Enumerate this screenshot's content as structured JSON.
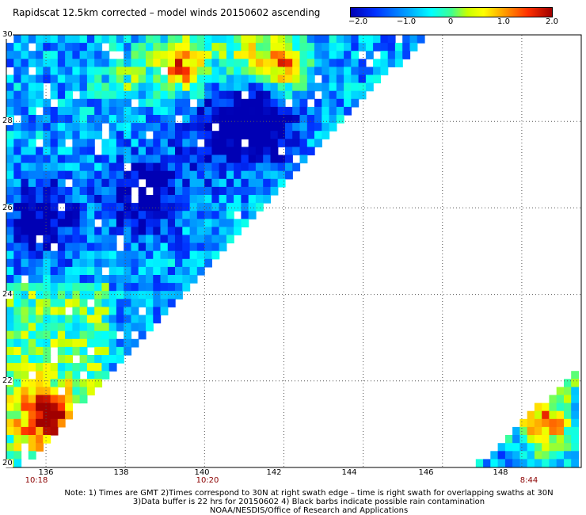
{
  "title": "Rapidscat 12.5km corrected – model winds 20150602 ascending",
  "colorbar": {
    "labels": [
      "−2.0",
      "−1.0",
      "0",
      "1.0",
      "2.0"
    ],
    "label_values": [
      -2.0,
      -1.0,
      0,
      1.0,
      2.0
    ],
    "range": [
      -2.0,
      2.0
    ]
  },
  "map": {
    "lon_range": [
      135,
      149.5
    ],
    "lat_range": [
      20,
      30
    ],
    "lon_ticks": [
      "136",
      "138",
      "140",
      "142",
      "144",
      "146",
      "148"
    ],
    "lon_tick_values": [
      136,
      138,
      140,
      142,
      144,
      146,
      148
    ],
    "lat_ticks": [
      "30",
      "28",
      "26",
      "24",
      "22",
      "20"
    ],
    "lat_tick_values": [
      30,
      28,
      26,
      24,
      22,
      20
    ],
    "time_labels": [
      {
        "text": "10:18",
        "lon": 135.8
      },
      {
        "text": "10:20",
        "lon": 140.2
      },
      {
        "text": "8:44",
        "lon": 148.6
      }
    ],
    "grid": "dotted"
  },
  "notes": [
    "Note: 1) Times are GMT 2)Times correspond to 30N at right swath edge – time is right swath for overlapping swaths at 30N",
    "3)Data buffer is 22 hrs for 20150602 4) Black barbs indicate possible rain contamination",
    "NOAA/NESDIS/Office of Research and Applications"
  ]
}
